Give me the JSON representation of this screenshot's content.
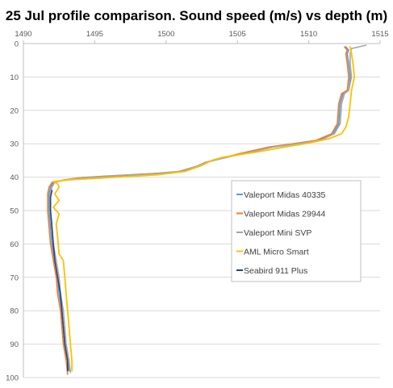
{
  "chart_data": {
    "type": "line",
    "title": "25 Jul profile comparison. Sound speed (m/s) vs depth (m)",
    "xlabel": "",
    "ylabel": "",
    "xlim": [
      1490,
      1515
    ],
    "ylim": [
      0,
      100
    ],
    "y_inverted": true,
    "x_axis_position": "top",
    "x_ticks": [
      1490,
      1495,
      1500,
      1505,
      1510,
      1515
    ],
    "y_ticks": [
      0,
      10,
      20,
      30,
      40,
      50,
      60,
      70,
      80,
      90,
      100
    ],
    "grid": {
      "x": false,
      "y": true
    },
    "legend_position": "right-center",
    "series": [
      {
        "name": "Valeport Midas 40335",
        "color": "#5B9BD5",
        "points": [
          [
            1512.6,
            1
          ],
          [
            1512.8,
            2
          ],
          [
            1512.7,
            3
          ],
          [
            1512.8,
            6
          ],
          [
            1512.9,
            10
          ],
          [
            1512.8,
            14
          ],
          [
            1512.4,
            15
          ],
          [
            1512.2,
            18
          ],
          [
            1512.1,
            24
          ],
          [
            1511.7,
            27
          ],
          [
            1510.6,
            29
          ],
          [
            1509.0,
            30
          ],
          [
            1507.3,
            31
          ],
          [
            1505.2,
            33
          ],
          [
            1502.9,
            35.5
          ],
          [
            1502.1,
            37
          ],
          [
            1500.8,
            38.5
          ],
          [
            1499.0,
            39
          ],
          [
            1496.0,
            39.7
          ],
          [
            1494.0,
            40.2
          ],
          [
            1493.0,
            40.8
          ],
          [
            1492.1,
            41.6
          ],
          [
            1491.9,
            43
          ],
          [
            1491.8,
            45
          ],
          [
            1491.8,
            50
          ],
          [
            1491.9,
            55
          ],
          [
            1492.0,
            60
          ],
          [
            1492.2,
            65
          ],
          [
            1492.4,
            70
          ],
          [
            1492.5,
            75
          ],
          [
            1492.7,
            80
          ],
          [
            1492.8,
            85
          ],
          [
            1492.9,
            90
          ],
          [
            1493.1,
            95
          ],
          [
            1493.2,
            98
          ]
        ]
      },
      {
        "name": "Valeport Midas 29944",
        "color": "#ED7D31",
        "points": [
          [
            1512.5,
            1
          ],
          [
            1512.7,
            2
          ],
          [
            1512.6,
            3
          ],
          [
            1512.7,
            6
          ],
          [
            1512.8,
            10
          ],
          [
            1512.7,
            14
          ],
          [
            1512.3,
            15
          ],
          [
            1512.1,
            18
          ],
          [
            1512.0,
            24
          ],
          [
            1511.6,
            27
          ],
          [
            1510.5,
            29
          ],
          [
            1508.9,
            30
          ],
          [
            1507.2,
            31
          ],
          [
            1505.1,
            33
          ],
          [
            1502.8,
            35.5
          ],
          [
            1502.0,
            37
          ],
          [
            1500.7,
            38.5
          ],
          [
            1498.9,
            39
          ],
          [
            1495.9,
            39.7
          ],
          [
            1493.9,
            40.2
          ],
          [
            1492.9,
            40.8
          ],
          [
            1492.0,
            41.6
          ],
          [
            1491.8,
            43
          ],
          [
            1491.7,
            45
          ],
          [
            1491.7,
            50
          ],
          [
            1491.8,
            55
          ],
          [
            1491.9,
            60
          ],
          [
            1492.1,
            65
          ],
          [
            1492.3,
            70
          ],
          [
            1492.4,
            75
          ],
          [
            1492.6,
            80
          ],
          [
            1492.7,
            85
          ],
          [
            1492.8,
            90
          ],
          [
            1493.0,
            95
          ],
          [
            1493.1,
            99
          ]
        ]
      },
      {
        "name": "Valeport Mini SVP",
        "color": "#A5A5A5",
        "points": [
          [
            1514.0,
            0.5
          ],
          [
            1513.5,
            1
          ],
          [
            1513.0,
            1.5
          ],
          [
            1512.9,
            3
          ],
          [
            1512.9,
            6
          ],
          [
            1513.0,
            10
          ],
          [
            1512.8,
            14
          ],
          [
            1512.5,
            15
          ],
          [
            1512.3,
            18
          ],
          [
            1512.2,
            24
          ],
          [
            1511.8,
            27
          ],
          [
            1510.8,
            29
          ],
          [
            1509.2,
            30
          ],
          [
            1507.5,
            31
          ],
          [
            1505.4,
            33
          ],
          [
            1503.0,
            35.3
          ],
          [
            1502.3,
            36.5
          ],
          [
            1500.9,
            38.3
          ],
          [
            1499.1,
            38.9
          ],
          [
            1496.1,
            39.6
          ],
          [
            1494.1,
            40.1
          ],
          [
            1493.1,
            40.7
          ],
          [
            1492.2,
            41.5
          ],
          [
            1492.0,
            43
          ],
          [
            1491.9,
            45
          ],
          [
            1491.9,
            50
          ],
          [
            1492.0,
            55
          ],
          [
            1492.1,
            60
          ],
          [
            1492.3,
            65
          ],
          [
            1492.5,
            70
          ],
          [
            1492.6,
            75
          ],
          [
            1492.8,
            80
          ],
          [
            1492.9,
            85
          ],
          [
            1493.0,
            90
          ],
          [
            1493.2,
            95
          ],
          [
            1493.3,
            98.5
          ]
        ]
      },
      {
        "name": "AML Micro Smart",
        "color": "#FFC000",
        "points": [
          [
            1512.9,
            1
          ],
          [
            1513.0,
            3
          ],
          [
            1513.1,
            6
          ],
          [
            1513.2,
            10
          ],
          [
            1513.0,
            14
          ],
          [
            1512.9,
            18
          ],
          [
            1512.8,
            22
          ],
          [
            1512.6,
            25
          ],
          [
            1512.3,
            27
          ],
          [
            1511.4,
            28.5
          ],
          [
            1510.0,
            29.8
          ],
          [
            1508.3,
            31
          ],
          [
            1506.3,
            32.5
          ],
          [
            1504.0,
            34
          ],
          [
            1503.2,
            35
          ],
          [
            1502.5,
            36.5
          ],
          [
            1501.3,
            38.3
          ],
          [
            1499.4,
            39.3
          ],
          [
            1496.5,
            40
          ],
          [
            1494.5,
            40.5
          ],
          [
            1493.3,
            40.8
          ],
          [
            1492.1,
            41.3
          ],
          [
            1492.4,
            42
          ],
          [
            1492.5,
            43
          ],
          [
            1492.2,
            45
          ],
          [
            1492.5,
            47
          ],
          [
            1492.1,
            49
          ],
          [
            1492.5,
            51
          ],
          [
            1492.3,
            54
          ],
          [
            1492.4,
            58
          ],
          [
            1492.5,
            63
          ],
          [
            1492.8,
            65
          ],
          [
            1492.9,
            70
          ],
          [
            1493.0,
            75
          ],
          [
            1493.1,
            80
          ],
          [
            1493.2,
            85
          ],
          [
            1493.3,
            90
          ],
          [
            1493.4,
            95
          ],
          [
            1493.4,
            98
          ]
        ]
      },
      {
        "name": "Seabird 911 Plus",
        "color": "#264478",
        "points": [
          [
            1492.0,
            44
          ],
          [
            1491.9,
            46
          ],
          [
            1491.9,
            50
          ],
          [
            1492.0,
            55
          ],
          [
            1492.1,
            60
          ],
          [
            1492.2,
            65
          ],
          [
            1492.4,
            70
          ],
          [
            1492.6,
            75
          ],
          [
            1492.7,
            80
          ],
          [
            1492.8,
            85
          ],
          [
            1492.9,
            90
          ],
          [
            1493.1,
            95
          ],
          [
            1493.1,
            98
          ]
        ]
      }
    ]
  }
}
